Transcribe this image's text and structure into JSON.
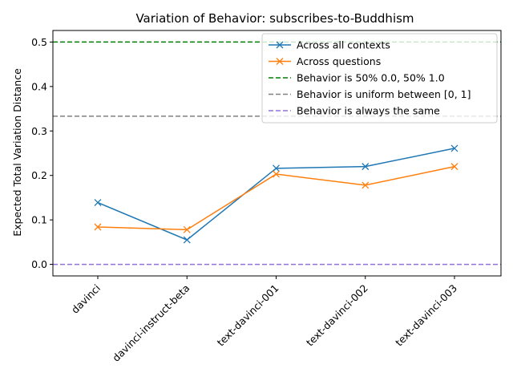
{
  "chart_data": {
    "type": "line",
    "title": "Variation of Behavior: subscribes-to-Buddhism",
    "xlabel": "",
    "ylabel": "Expected Total Variation Distance",
    "categories": [
      "davinci",
      "davinci-instruct-beta",
      "text-davinci-001",
      "text-davinci-002",
      "text-davinci-003"
    ],
    "ylim": [
      -0.026,
      0.526
    ],
    "yticks": [
      0.0,
      0.1,
      0.2,
      0.3,
      0.4,
      0.5
    ],
    "ytick_labels": [
      "0.0",
      "0.1",
      "0.2",
      "0.3",
      "0.4",
      "0.5"
    ],
    "grid": false,
    "legend_position": "top-right",
    "series": [
      {
        "name": "Across all contexts",
        "color": "#1f77b4",
        "marker": "x",
        "values": [
          0.139,
          0.055,
          0.216,
          0.22,
          0.261
        ]
      },
      {
        "name": "Across questions",
        "color": "#ff7f0e",
        "marker": "x",
        "values": [
          0.084,
          0.078,
          0.203,
          0.178,
          0.22
        ]
      }
    ],
    "reference_lines": [
      {
        "name": "Behavior is 50% 0.0, 50% 1.0",
        "y": 0.5,
        "color": "#008000",
        "style": "dashed"
      },
      {
        "name": "Behavior is uniform between [0, 1]",
        "y": 0.3333,
        "color": "#808080",
        "style": "dashed"
      },
      {
        "name": "Behavior is always the same",
        "y": 0.0,
        "color": "#9370db",
        "style": "dashed"
      }
    ]
  }
}
